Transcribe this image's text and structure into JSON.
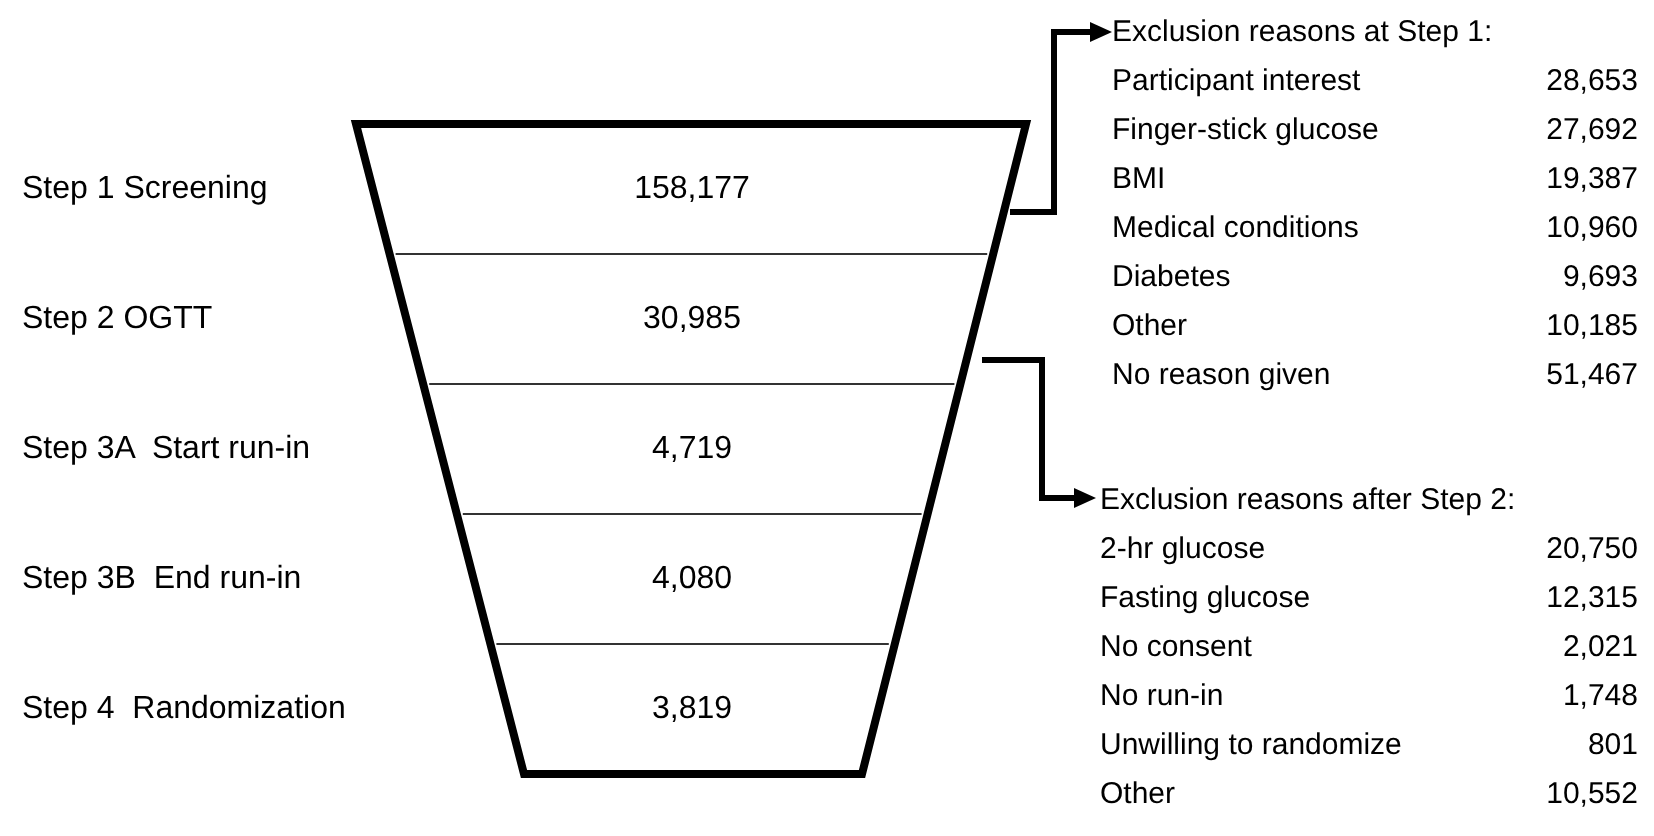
{
  "chart_data": [
    {
      "type": "other",
      "categories": [
        "Step 1 Screening",
        "Step 2 OGTT",
        "Step 3A  Start run-in",
        "Step 3B  End run-in",
        "Step 4  Randomization"
      ],
      "values": [
        158177,
        30985,
        4719,
        4080,
        3819
      ],
      "value_labels": [
        "158,177",
        "30,985",
        "4,719",
        "4,080",
        "3,819"
      ],
      "data_labels": true
    },
    {
      "type": "other",
      "title": "Exclusion reasons at Step 1:",
      "categories": [
        "Participant interest",
        "Finger-stick glucose",
        "BMI",
        "Medical conditions",
        "Diabetes",
        "Other",
        "No reason given"
      ],
      "values": [
        28653,
        27692,
        19387,
        10960,
        9693,
        10185,
        51467
      ],
      "value_labels": [
        "28,653",
        "27,692",
        "19,387",
        "10,960",
        "9,693",
        "10,185",
        "51,467"
      ],
      "data_labels": true
    },
    {
      "type": "other",
      "title": "Exclusion reasons after Step 2:",
      "categories": [
        "2-hr glucose",
        "Fasting glucose",
        "No consent",
        "No run-in",
        "Unwilling to randomize",
        "Other"
      ],
      "values": [
        20750,
        12315,
        2021,
        1748,
        801,
        10552
      ],
      "value_labels": [
        "20,750",
        "12,315",
        "2,021",
        "1,748",
        "801",
        "10,552"
      ],
      "data_labels": true
    }
  ]
}
